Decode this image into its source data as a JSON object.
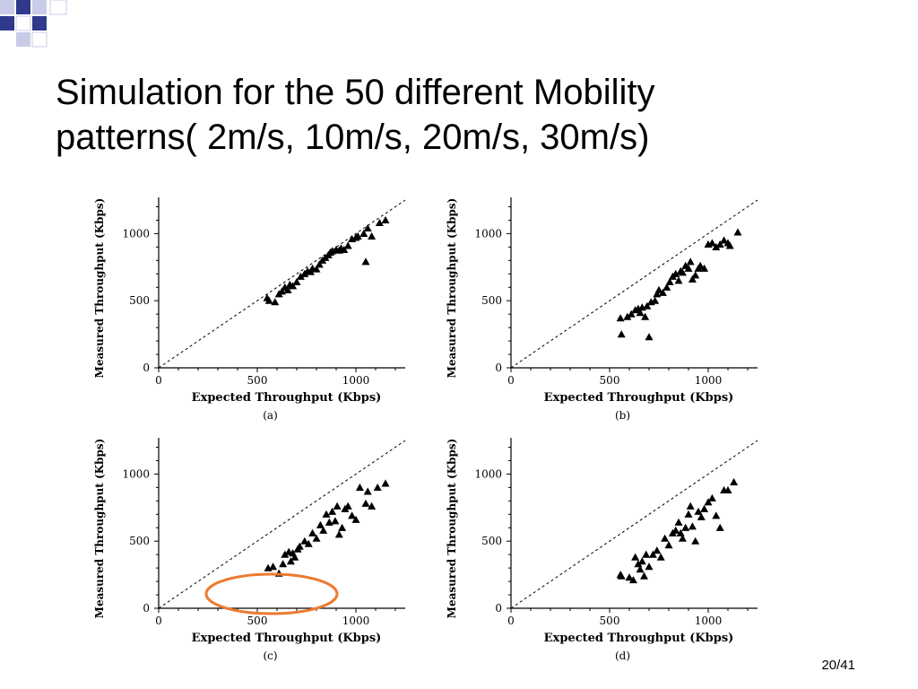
{
  "slide": {
    "title_line1": "Simulation for the 50 different Mobility",
    "title_line2": "patterns( 2m/s, 10m/s, 20m/s, 30m/s)",
    "page_number": "20/41"
  },
  "colors": {
    "logo_navy": "#2f3a8c",
    "logo_light": "#c9cce8",
    "highlight_ellipse": "#ee7a30",
    "marker": "#000000"
  },
  "chart_data": [
    {
      "type": "scatter",
      "caption": "(a)",
      "xlabel": "Expected Throughput (Kbps)",
      "ylabel": "Measured Throughput (Kbps)",
      "xlim": [
        0,
        1250
      ],
      "ylim": [
        0,
        1270
      ],
      "xticks": [
        0,
        500,
        1000
      ],
      "yticks": [
        0,
        500,
        1000
      ],
      "reference_line": "y=x (dashed)",
      "points": [
        [
          550,
          520
        ],
        [
          560,
          500
        ],
        [
          590,
          490
        ],
        [
          610,
          550
        ],
        [
          625,
          570
        ],
        [
          640,
          600
        ],
        [
          655,
          580
        ],
        [
          665,
          620
        ],
        [
          680,
          610
        ],
        [
          700,
          640
        ],
        [
          720,
          680
        ],
        [
          740,
          700
        ],
        [
          755,
          720
        ],
        [
          770,
          715
        ],
        [
          780,
          740
        ],
        [
          800,
          735
        ],
        [
          815,
          770
        ],
        [
          830,
          800
        ],
        [
          845,
          820
        ],
        [
          860,
          840
        ],
        [
          870,
          860
        ],
        [
          880,
          870
        ],
        [
          900,
          880
        ],
        [
          915,
          875
        ],
        [
          925,
          890
        ],
        [
          940,
          880
        ],
        [
          960,
          910
        ],
        [
          980,
          960
        ],
        [
          1000,
          970
        ],
        [
          1010,
          980
        ],
        [
          1040,
          1000
        ],
        [
          1050,
          790
        ],
        [
          1060,
          1040
        ],
        [
          1080,
          980
        ],
        [
          1120,
          1080
        ],
        [
          1150,
          1100
        ]
      ]
    },
    {
      "type": "scatter",
      "caption": "(b)",
      "xlabel": "Expected Throughput (Kbps)",
      "ylabel": "Measured Throughput (Kbps)",
      "xlim": [
        0,
        1250
      ],
      "ylim": [
        0,
        1270
      ],
      "xticks": [
        0,
        500,
        1000
      ],
      "yticks": [
        0,
        500,
        1000
      ],
      "reference_line": "y=x (dashed)",
      "points": [
        [
          555,
          370
        ],
        [
          560,
          250
        ],
        [
          590,
          380
        ],
        [
          610,
          400
        ],
        [
          630,
          430
        ],
        [
          645,
          440
        ],
        [
          655,
          410
        ],
        [
          665,
          450
        ],
        [
          680,
          380
        ],
        [
          690,
          460
        ],
        [
          700,
          230
        ],
        [
          710,
          490
        ],
        [
          730,
          500
        ],
        [
          740,
          550
        ],
        [
          750,
          580
        ],
        [
          770,
          560
        ],
        [
          790,
          600
        ],
        [
          805,
          640
        ],
        [
          820,
          680
        ],
        [
          835,
          700
        ],
        [
          850,
          650
        ],
        [
          860,
          720
        ],
        [
          870,
          710
        ],
        [
          885,
          760
        ],
        [
          900,
          740
        ],
        [
          910,
          790
        ],
        [
          920,
          660
        ],
        [
          935,
          690
        ],
        [
          950,
          740
        ],
        [
          960,
          760
        ],
        [
          980,
          740
        ],
        [
          1000,
          920
        ],
        [
          1020,
          930
        ],
        [
          1040,
          900
        ],
        [
          1060,
          920
        ],
        [
          1080,
          950
        ],
        [
          1100,
          930
        ],
        [
          1110,
          910
        ],
        [
          1150,
          1010
        ]
      ]
    },
    {
      "type": "scatter",
      "caption": "(c)",
      "xlabel": "Expected Throughput (Kbps)",
      "ylabel": "Measured Throughput (Kbps)",
      "xlim": [
        0,
        1250
      ],
      "ylim": [
        0,
        1270
      ],
      "xticks": [
        0,
        500,
        1000
      ],
      "yticks": [
        0,
        500,
        1000
      ],
      "reference_line": "y=x (dashed)",
      "points": [
        [
          555,
          300
        ],
        [
          580,
          310
        ],
        [
          610,
          260
        ],
        [
          630,
          330
        ],
        [
          640,
          400
        ],
        [
          660,
          420
        ],
        [
          670,
          350
        ],
        [
          680,
          410
        ],
        [
          690,
          380
        ],
        [
          705,
          440
        ],
        [
          715,
          460
        ],
        [
          740,
          500
        ],
        [
          760,
          480
        ],
        [
          780,
          560
        ],
        [
          800,
          520
        ],
        [
          820,
          620
        ],
        [
          835,
          580
        ],
        [
          850,
          700
        ],
        [
          865,
          640
        ],
        [
          880,
          720
        ],
        [
          895,
          650
        ],
        [
          905,
          760
        ],
        [
          915,
          550
        ],
        [
          930,
          600
        ],
        [
          945,
          740
        ],
        [
          960,
          760
        ],
        [
          980,
          690
        ],
        [
          1000,
          660
        ],
        [
          1020,
          900
        ],
        [
          1050,
          780
        ],
        [
          1060,
          870
        ],
        [
          1080,
          760
        ],
        [
          1110,
          900
        ],
        [
          1150,
          930
        ]
      ]
    },
    {
      "type": "scatter",
      "caption": "(d)",
      "xlabel": "Expected Throughput (Kbps)",
      "ylabel": "Measured Throughput (Kbps)",
      "xlim": [
        0,
        1250
      ],
      "ylim": [
        0,
        1270
      ],
      "xticks": [
        0,
        500,
        1000
      ],
      "yticks": [
        0,
        500,
        1000
      ],
      "reference_line": "y=x (dashed)",
      "points": [
        [
          555,
          250
        ],
        [
          560,
          240
        ],
        [
          600,
          230
        ],
        [
          620,
          210
        ],
        [
          630,
          380
        ],
        [
          645,
          330
        ],
        [
          655,
          290
        ],
        [
          665,
          350
        ],
        [
          675,
          240
        ],
        [
          685,
          400
        ],
        [
          700,
          310
        ],
        [
          720,
          400
        ],
        [
          740,
          430
        ],
        [
          760,
          380
        ],
        [
          780,
          520
        ],
        [
          800,
          470
        ],
        [
          820,
          560
        ],
        [
          835,
          580
        ],
        [
          850,
          640
        ],
        [
          860,
          560
        ],
        [
          870,
          520
        ],
        [
          885,
          600
        ],
        [
          900,
          700
        ],
        [
          910,
          760
        ],
        [
          920,
          610
        ],
        [
          935,
          500
        ],
        [
          950,
          720
        ],
        [
          965,
          680
        ],
        [
          980,
          740
        ],
        [
          1000,
          790
        ],
        [
          1020,
          820
        ],
        [
          1040,
          690
        ],
        [
          1060,
          600
        ],
        [
          1080,
          880
        ],
        [
          1100,
          880
        ],
        [
          1130,
          940
        ]
      ]
    }
  ]
}
